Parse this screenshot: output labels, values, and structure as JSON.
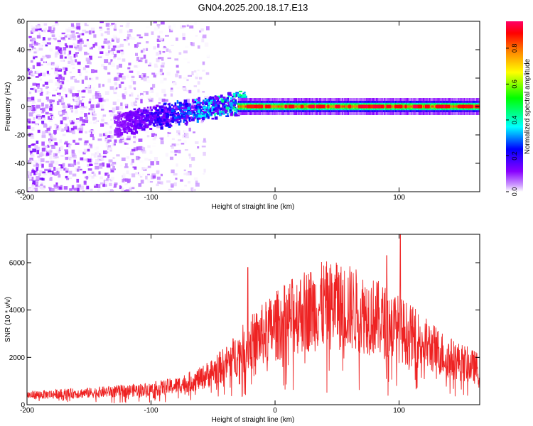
{
  "title": "GN04.2025.200.18.17.E13",
  "chart_data": [
    {
      "type": "heatmap",
      "xlabel": "Height of straight line (km)",
      "ylabel": "Frequency (Hz)",
      "xlim": [
        -200,
        165
      ],
      "ylim": [
        -60,
        60
      ],
      "xticks": [
        -200,
        -100,
        0,
        100
      ],
      "yticks": [
        -60,
        -40,
        -20,
        0,
        20,
        40,
        60
      ],
      "colorbar": {
        "label": "Normalized spectral amplitude",
        "range": [
          0,
          0.95
        ],
        "ticks": [
          "0.0",
          "0.2",
          "0.4",
          "0.6",
          "0.8"
        ],
        "tick_values": [
          0,
          0.2,
          0.4,
          0.6,
          0.8
        ],
        "colors": [
          "#ffffff",
          "#8800ff",
          "#0000ff",
          "#00ffff",
          "#00ff00",
          "#ffff00",
          "#ff8800",
          "#ff0000",
          "#ff0080"
        ]
      },
      "features": {
        "noise_region_x": [
          -200,
          -60
        ],
        "signal_band_center_hz": 0,
        "strong_band_x": [
          -30,
          165
        ],
        "band_peak_amplitude": 0.9
      }
    },
    {
      "type": "line",
      "xlabel": "Height of straight line (km)",
      "ylabel": "SNR (10 * v/v)",
      "xlim": [
        -200,
        165
      ],
      "ylim": [
        0,
        7200
      ],
      "xticks": [
        -200,
        -100,
        0,
        100
      ],
      "yticks": [
        0,
        2000,
        4000,
        6000
      ],
      "color": "#ee2222",
      "envelope": {
        "x": [
          -200,
          -150,
          -100,
          -80,
          -60,
          -40,
          -20,
          0,
          20,
          40,
          60,
          80,
          100,
          120,
          140,
          165
        ],
        "y": [
          400,
          500,
          650,
          800,
          1100,
          1700,
          2600,
          3300,
          3900,
          4200,
          4100,
          3700,
          3200,
          2600,
          2000,
          1500
        ]
      },
      "spikes": [
        {
          "x": -22,
          "y": 5800
        },
        {
          "x": 50,
          "y": 5900
        },
        {
          "x": 90,
          "y": 6300
        },
        {
          "x": 101,
          "y": 7200
        }
      ]
    }
  ]
}
